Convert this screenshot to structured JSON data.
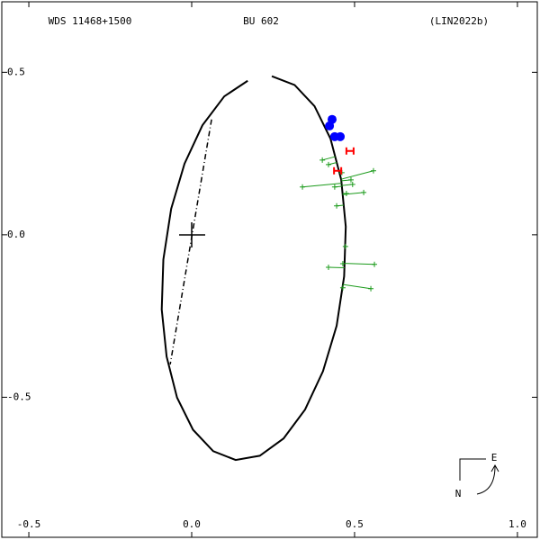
{
  "chart_data": {
    "type": "scatter",
    "title": "WDS 11468+1500",
    "subtitle": "BU  602",
    "reference": "(LIN2022b)",
    "compass": {
      "east": "E",
      "north": "N"
    },
    "xlim": [
      -0.583,
      1.061
    ],
    "ylim": [
      -0.931,
      0.717
    ],
    "xticks": [
      {
        "value": -0.5,
        "label": "-0.5"
      },
      {
        "value": 0,
        "label": "0.0"
      },
      {
        "value": 0.5,
        "label": "0.5"
      },
      {
        "value": 1,
        "label": "1.0"
      }
    ],
    "yticks": [
      0.5,
      {
        "value": 0,
        "label": "0.0"
      },
      -0.5
    ],
    "series": [
      {
        "marker": "line",
        "color": "#000000",
        "x": [
          0.246,
          0.316,
          0.377,
          0.426,
          0.459,
          0.473,
          0.468,
          0.445,
          0.403,
          0.348,
          0.282,
          0.209,
          0.135,
          0.066,
          0.004,
          -0.045,
          -0.077,
          -0.092,
          -0.087,
          -0.063,
          -0.022,
          0.033,
          0.1,
          0.172
        ],
        "y": [
          0.488,
          0.461,
          0.396,
          0.296,
          0.17,
          0.025,
          -0.128,
          -0.28,
          -0.42,
          -0.538,
          -0.627,
          -0.68,
          -0.693,
          -0.666,
          -0.6,
          -0.501,
          -0.375,
          -0.23,
          -0.076,
          0.08,
          0.219,
          0.337,
          0.426,
          0.474
        ]
      },
      {
        "marker": "dashdot",
        "color": "#000000",
        "x": [
          0.061,
          -0.066
        ],
        "y": [
          0.355,
          -0.399
        ]
      },
      {
        "marker": "plus",
        "color": "#1a9a1a",
        "x": [
          0.401,
          0.42,
          0.461,
          0.558,
          0.34,
          0.439,
          0.528,
          0.475,
          0.489,
          0.494,
          0.445,
          0.472,
          0.561,
          0.464,
          0.42,
          0.55,
          0.464
        ],
        "y": [
          0.23,
          0.216,
          0.191,
          0.197,
          0.147,
          0.147,
          0.13,
          0.127,
          0.169,
          0.155,
          0.089,
          -0.036,
          -0.091,
          -0.089,
          -0.1,
          -0.166,
          -0.163
        ]
      },
      {
        "marker": "circle",
        "color": "#0000ff",
        "x": [
          0.431,
          0.423,
          0.439,
          0.456
        ],
        "y": [
          0.355,
          0.335,
          0.302,
          0.302
        ]
      },
      {
        "marker": "bar",
        "color": "#ff0000",
        "x": [
          0.486,
          0.448
        ],
        "y": [
          0.258,
          0.197
        ]
      }
    ]
  }
}
